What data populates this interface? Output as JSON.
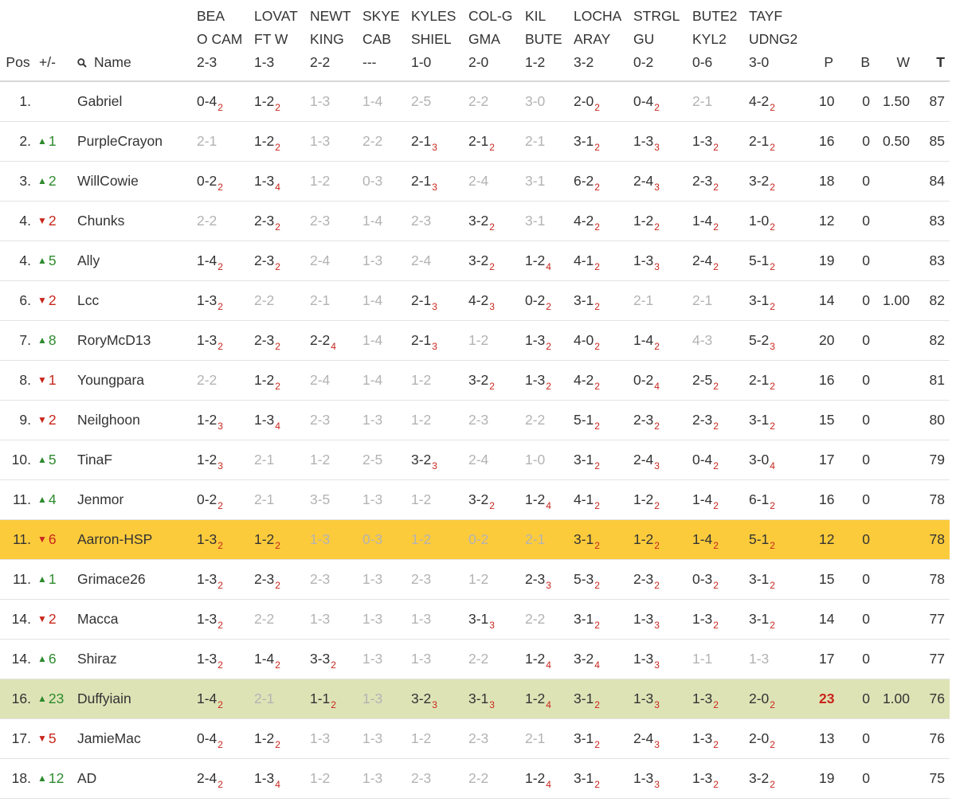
{
  "colors": {
    "up": "#2e8b2e",
    "down": "#c8261c",
    "highlight_yellow": "#fccb3c",
    "highlight_green": "#dee3b6"
  },
  "header": {
    "pos": "Pos",
    "change": "+/-",
    "name": "Name",
    "matches": [
      "BEA\nO CAM\n2-3",
      "LOVAT\nFT W\n1-3",
      "NEWT\nKING\n2-2",
      "SKYE\nCAB\n---",
      "KYLES\nSHIEL\n1-0",
      "COL-G\nGMA\n2-0",
      "KIL\nBUTE\n1-2",
      "LOCHA\nARAY\n3-2",
      "STRGL\nGU\n0-2",
      "BUTE2\nKYL2\n0-6",
      "TAYF\nUDNG2\n3-0"
    ],
    "p": "P",
    "b": "B",
    "w": "W",
    "t": "T"
  },
  "rows": [
    {
      "pos": "1.",
      "dir": "",
      "chg": "",
      "name": "Gabriel",
      "preds": [
        [
          "0-4",
          "2"
        ],
        [
          "1-2",
          "2"
        ],
        [
          "1-3",
          ""
        ],
        [
          "1-4",
          ""
        ],
        [
          "2-5",
          ""
        ],
        [
          "2-2",
          ""
        ],
        [
          "3-0",
          ""
        ],
        [
          "2-0",
          "2"
        ],
        [
          "0-4",
          "2"
        ],
        [
          "2-1",
          ""
        ],
        [
          "4-2",
          "2"
        ]
      ],
      "p": "10",
      "b": "0",
      "w": "1.50",
      "t": "87"
    },
    {
      "pos": "2.",
      "dir": "up",
      "chg": "1",
      "name": "PurpleCrayon",
      "preds": [
        [
          "2-1",
          ""
        ],
        [
          "1-2",
          "2"
        ],
        [
          "1-3",
          ""
        ],
        [
          "2-2",
          ""
        ],
        [
          "2-1",
          "3"
        ],
        [
          "2-1",
          "2"
        ],
        [
          "2-1",
          ""
        ],
        [
          "3-1",
          "2"
        ],
        [
          "1-3",
          "3"
        ],
        [
          "1-3",
          "2"
        ],
        [
          "2-1",
          "2"
        ]
      ],
      "p": "16",
      "b": "0",
      "w": "0.50",
      "t": "85"
    },
    {
      "pos": "3.",
      "dir": "up",
      "chg": "2",
      "name": "WillCowie",
      "preds": [
        [
          "0-2",
          "2"
        ],
        [
          "1-3",
          "4"
        ],
        [
          "1-2",
          ""
        ],
        [
          "0-3",
          ""
        ],
        [
          "2-1",
          "3"
        ],
        [
          "2-4",
          ""
        ],
        [
          "3-1",
          ""
        ],
        [
          "6-2",
          "2"
        ],
        [
          "2-4",
          "3"
        ],
        [
          "2-3",
          "2"
        ],
        [
          "3-2",
          "2"
        ]
      ],
      "p": "18",
      "b": "0",
      "w": "",
      "t": "84"
    },
    {
      "pos": "4.",
      "dir": "down",
      "chg": "2",
      "name": "Chunks",
      "preds": [
        [
          "2-2",
          ""
        ],
        [
          "2-3",
          "2"
        ],
        [
          "2-3",
          ""
        ],
        [
          "1-4",
          ""
        ],
        [
          "2-3",
          ""
        ],
        [
          "3-2",
          "2"
        ],
        [
          "3-1",
          ""
        ],
        [
          "4-2",
          "2"
        ],
        [
          "1-2",
          "2"
        ],
        [
          "1-4",
          "2"
        ],
        [
          "1-0",
          "2"
        ]
      ],
      "p": "12",
      "b": "0",
      "w": "",
      "t": "83"
    },
    {
      "pos": "4.",
      "dir": "up",
      "chg": "5",
      "name": "Ally",
      "preds": [
        [
          "1-4",
          "2"
        ],
        [
          "2-3",
          "2"
        ],
        [
          "2-4",
          ""
        ],
        [
          "1-3",
          ""
        ],
        [
          "2-4",
          ""
        ],
        [
          "3-2",
          "2"
        ],
        [
          "1-2",
          "4"
        ],
        [
          "4-1",
          "2"
        ],
        [
          "1-3",
          "3"
        ],
        [
          "2-4",
          "2"
        ],
        [
          "5-1",
          "2"
        ]
      ],
      "p": "19",
      "b": "0",
      "w": "",
      "t": "83"
    },
    {
      "pos": "6.",
      "dir": "down",
      "chg": "2",
      "name": "Lcc",
      "preds": [
        [
          "1-3",
          "2"
        ],
        [
          "2-2",
          ""
        ],
        [
          "2-1",
          ""
        ],
        [
          "1-4",
          ""
        ],
        [
          "2-1",
          "3"
        ],
        [
          "4-2",
          "3"
        ],
        [
          "0-2",
          "2"
        ],
        [
          "3-1",
          "2"
        ],
        [
          "2-1",
          ""
        ],
        [
          "2-1",
          ""
        ],
        [
          "3-1",
          "2"
        ]
      ],
      "p": "14",
      "b": "0",
      "w": "1.00",
      "t": "82"
    },
    {
      "pos": "7.",
      "dir": "up",
      "chg": "8",
      "name": "RoryMcD13",
      "preds": [
        [
          "1-3",
          "2"
        ],
        [
          "2-3",
          "2"
        ],
        [
          "2-2",
          "4"
        ],
        [
          "1-4",
          ""
        ],
        [
          "2-1",
          "3"
        ],
        [
          "1-2",
          ""
        ],
        [
          "1-3",
          "2"
        ],
        [
          "4-0",
          "2"
        ],
        [
          "1-4",
          "2"
        ],
        [
          "4-3",
          ""
        ],
        [
          "5-2",
          "3"
        ]
      ],
      "p": "20",
      "b": "0",
      "w": "",
      "t": "82"
    },
    {
      "pos": "8.",
      "dir": "down",
      "chg": "1",
      "name": "Youngpara",
      "preds": [
        [
          "2-2",
          ""
        ],
        [
          "1-2",
          "2"
        ],
        [
          "2-4",
          ""
        ],
        [
          "1-4",
          ""
        ],
        [
          "1-2",
          ""
        ],
        [
          "3-2",
          "2"
        ],
        [
          "1-3",
          "2"
        ],
        [
          "4-2",
          "2"
        ],
        [
          "0-2",
          "4"
        ],
        [
          "2-5",
          "2"
        ],
        [
          "2-1",
          "2"
        ]
      ],
      "p": "16",
      "b": "0",
      "w": "",
      "t": "81"
    },
    {
      "pos": "9.",
      "dir": "down",
      "chg": "2",
      "name": "Neilghoon",
      "preds": [
        [
          "1-2",
          "3"
        ],
        [
          "1-3",
          "4"
        ],
        [
          "2-3",
          ""
        ],
        [
          "1-3",
          ""
        ],
        [
          "1-2",
          ""
        ],
        [
          "2-3",
          ""
        ],
        [
          "2-2",
          ""
        ],
        [
          "5-1",
          "2"
        ],
        [
          "2-3",
          "2"
        ],
        [
          "2-3",
          "2"
        ],
        [
          "3-1",
          "2"
        ]
      ],
      "p": "15",
      "b": "0",
      "w": "",
      "t": "80"
    },
    {
      "pos": "10.",
      "dir": "up",
      "chg": "5",
      "name": "TinaF",
      "preds": [
        [
          "1-2",
          "3"
        ],
        [
          "2-1",
          ""
        ],
        [
          "1-2",
          ""
        ],
        [
          "2-5",
          ""
        ],
        [
          "3-2",
          "3"
        ],
        [
          "2-4",
          ""
        ],
        [
          "1-0",
          ""
        ],
        [
          "3-1",
          "2"
        ],
        [
          "2-4",
          "3"
        ],
        [
          "0-4",
          "2"
        ],
        [
          "3-0",
          "4"
        ]
      ],
      "p": "17",
      "b": "0",
      "w": "",
      "t": "79"
    },
    {
      "pos": "11.",
      "dir": "up",
      "chg": "4",
      "name": "Jenmor",
      "preds": [
        [
          "0-2",
          "2"
        ],
        [
          "2-1",
          ""
        ],
        [
          "3-5",
          ""
        ],
        [
          "1-3",
          ""
        ],
        [
          "1-2",
          ""
        ],
        [
          "3-2",
          "2"
        ],
        [
          "1-2",
          "4"
        ],
        [
          "4-1",
          "2"
        ],
        [
          "1-2",
          "2"
        ],
        [
          "1-4",
          "2"
        ],
        [
          "6-1",
          "2"
        ]
      ],
      "p": "16",
      "b": "0",
      "w": "",
      "t": "78"
    },
    {
      "pos": "11.",
      "dir": "down",
      "chg": "6",
      "name": "Aarron-HSP",
      "hl": "yellow",
      "preds": [
        [
          "1-3",
          "2"
        ],
        [
          "1-2",
          "2"
        ],
        [
          "1-3",
          ""
        ],
        [
          "0-3",
          ""
        ],
        [
          "1-2",
          ""
        ],
        [
          "0-2",
          ""
        ],
        [
          "2-1",
          ""
        ],
        [
          "3-1",
          "2"
        ],
        [
          "1-2",
          "2"
        ],
        [
          "1-4",
          "2"
        ],
        [
          "5-1",
          "2"
        ]
      ],
      "p": "12",
      "b": "0",
      "w": "",
      "t": "78"
    },
    {
      "pos": "11.",
      "dir": "up",
      "chg": "1",
      "name": "Grimace26",
      "preds": [
        [
          "1-3",
          "2"
        ],
        [
          "2-3",
          "2"
        ],
        [
          "2-3",
          ""
        ],
        [
          "1-3",
          ""
        ],
        [
          "2-3",
          ""
        ],
        [
          "1-2",
          ""
        ],
        [
          "2-3",
          "3"
        ],
        [
          "5-3",
          "2"
        ],
        [
          "2-3",
          "2"
        ],
        [
          "0-3",
          "2"
        ],
        [
          "3-1",
          "2"
        ]
      ],
      "p": "15",
      "b": "0",
      "w": "",
      "t": "78"
    },
    {
      "pos": "14.",
      "dir": "down",
      "chg": "2",
      "name": "Macca",
      "preds": [
        [
          "1-3",
          "2"
        ],
        [
          "2-2",
          ""
        ],
        [
          "1-3",
          ""
        ],
        [
          "1-3",
          ""
        ],
        [
          "1-3",
          ""
        ],
        [
          "3-1",
          "3"
        ],
        [
          "2-2",
          ""
        ],
        [
          "3-1",
          "2"
        ],
        [
          "1-3",
          "3"
        ],
        [
          "1-3",
          "2"
        ],
        [
          "3-1",
          "2"
        ]
      ],
      "p": "14",
      "b": "0",
      "w": "",
      "t": "77"
    },
    {
      "pos": "14.",
      "dir": "up",
      "chg": "6",
      "name": "Shiraz",
      "preds": [
        [
          "1-3",
          "2"
        ],
        [
          "1-4",
          "2"
        ],
        [
          "3-3",
          "2"
        ],
        [
          "1-3",
          ""
        ],
        [
          "1-3",
          ""
        ],
        [
          "2-2",
          ""
        ],
        [
          "1-2",
          "4"
        ],
        [
          "3-2",
          "4"
        ],
        [
          "1-3",
          "3"
        ],
        [
          "1-1",
          ""
        ],
        [
          "1-3",
          ""
        ]
      ],
      "p": "17",
      "b": "0",
      "w": "",
      "t": "77"
    },
    {
      "pos": "16.",
      "dir": "up",
      "chg": "23",
      "name": "Duffyiain",
      "hl": "green",
      "pred_bold": true,
      "preds": [
        [
          "1-4",
          "2"
        ],
        [
          "2-1",
          ""
        ],
        [
          "1-1",
          "2"
        ],
        [
          "1-3",
          ""
        ],
        [
          "3-2",
          "3"
        ],
        [
          "3-1",
          "3"
        ],
        [
          "1-2",
          "4"
        ],
        [
          "3-1",
          "2"
        ],
        [
          "1-3",
          "3"
        ],
        [
          "1-3",
          "2"
        ],
        [
          "2-0",
          "2"
        ]
      ],
      "p": "23",
      "b": "0",
      "w": "1.00",
      "t": "76"
    },
    {
      "pos": "17.",
      "dir": "down",
      "chg": "5",
      "name": "JamieMac",
      "preds": [
        [
          "0-4",
          "2"
        ],
        [
          "1-2",
          "2"
        ],
        [
          "1-3",
          ""
        ],
        [
          "1-3",
          ""
        ],
        [
          "1-2",
          ""
        ],
        [
          "2-3",
          ""
        ],
        [
          "2-1",
          ""
        ],
        [
          "3-1",
          "2"
        ],
        [
          "2-4",
          "3"
        ],
        [
          "1-3",
          "2"
        ],
        [
          "2-0",
          "2"
        ]
      ],
      "p": "13",
      "b": "0",
      "w": "",
      "t": "76"
    },
    {
      "pos": "18.",
      "dir": "up",
      "chg": "12",
      "name": "AD",
      "preds": [
        [
          "2-4",
          "2"
        ],
        [
          "1-3",
          "4"
        ],
        [
          "1-2",
          ""
        ],
        [
          "1-3",
          ""
        ],
        [
          "2-3",
          ""
        ],
        [
          "2-2",
          ""
        ],
        [
          "1-2",
          "4"
        ],
        [
          "3-1",
          "2"
        ],
        [
          "1-3",
          "3"
        ],
        [
          "1-3",
          "2"
        ],
        [
          "3-2",
          "2"
        ]
      ],
      "p": "19",
      "b": "0",
      "w": "",
      "t": "75"
    }
  ]
}
